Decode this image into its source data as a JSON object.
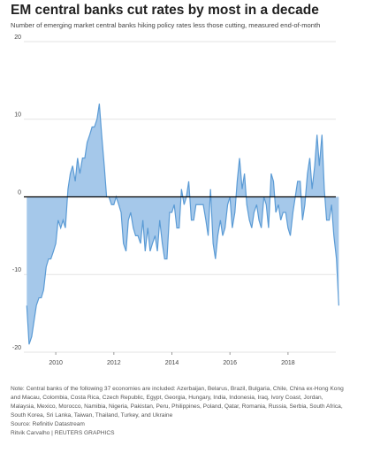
{
  "chart_data": {
    "type": "area",
    "title": "EM central banks cut rates by most in a decade",
    "subtitle": "Number of emerging market central banks hiking policy rates less those cutting, measured end-of-month",
    "note": "Note: Central banks of the following 37 economies are included: Azerbaijan, Belarus, Brazil, Bulgaria, Chile, China ex-Hong Kong and Macau, Colombia, Costa Rica, Czech Republic, Egypt, Georgia, Hungary, India, Indonesia, Iraq, Ivory Coast, Jordan, Malaysia, Mexico, Morocco, Namibia, Nigeria, Pakistan, Peru, Philippines, Poland, Qatar, Romania, Russia, Serbia, South Africa, South Korea, Sri Lanka, Taiwan, Thailand, Turkey, and Ukraine",
    "source": "Source: Refinitiv Datastream",
    "credit": "Ritvik Carvalho   | REUTERS GRAPHICS",
    "x": [
      2009,
      2009.08,
      2009.17,
      2009.25,
      2009.33,
      2009.42,
      2009.5,
      2009.58,
      2009.67,
      2009.75,
      2009.83,
      2009.92,
      2010,
      2010.08,
      2010.17,
      2010.25,
      2010.33,
      2010.42,
      2010.5,
      2010.58,
      2010.67,
      2010.75,
      2010.83,
      2010.92,
      2011,
      2011.08,
      2011.17,
      2011.25,
      2011.33,
      2011.42,
      2011.5,
      2011.58,
      2011.67,
      2011.75,
      2011.83,
      2011.92,
      2012,
      2012.08,
      2012.17,
      2012.25,
      2012.33,
      2012.42,
      2012.5,
      2012.58,
      2012.67,
      2012.75,
      2012.83,
      2012.92,
      2013,
      2013.08,
      2013.17,
      2013.25,
      2013.33,
      2013.42,
      2013.5,
      2013.58,
      2013.67,
      2013.75,
      2013.83,
      2013.92,
      2014,
      2014.08,
      2014.17,
      2014.25,
      2014.33,
      2014.42,
      2014.5,
      2014.58,
      2014.67,
      2014.75,
      2014.83,
      2014.92,
      2015,
      2015.08,
      2015.17,
      2015.25,
      2015.33,
      2015.42,
      2015.5,
      2015.58,
      2015.67,
      2015.75,
      2015.83,
      2015.92,
      2016,
      2016.08,
      2016.17,
      2016.25,
      2016.33,
      2016.42,
      2016.5,
      2016.58,
      2016.67,
      2016.75,
      2016.83,
      2016.92,
      2017,
      2017.08,
      2017.17,
      2017.25,
      2017.33,
      2017.42,
      2017.5,
      2017.58,
      2017.67,
      2017.75,
      2017.83,
      2017.92,
      2018,
      2018.08,
      2018.17,
      2018.25,
      2018.33,
      2018.42,
      2018.5,
      2018.58,
      2018.67,
      2018.75,
      2018.83,
      2018.92,
      2019,
      2019.08,
      2019.17,
      2019.25,
      2019.33,
      2019.42,
      2019.5,
      2019.58,
      2019.67,
      2019.75
    ],
    "values": [
      -14,
      -19,
      -18,
      -16,
      -14,
      -13,
      -13,
      -12,
      -9,
      -8,
      -8,
      -7,
      -6,
      -3,
      -4,
      -3,
      -4,
      1,
      3,
      4,
      2,
      5,
      3,
      5,
      5,
      7,
      8,
      9,
      9,
      10,
      12,
      8,
      4,
      0,
      0,
      -1,
      -1,
      0,
      -1,
      -2,
      -6,
      -7,
      -3,
      -2,
      -4,
      -5,
      -5,
      -6,
      -3,
      -7,
      -4,
      -7,
      -6,
      -5,
      -7,
      -3,
      -6,
      -8,
      -8,
      -2,
      -2,
      -1,
      -4,
      -4,
      1,
      -1,
      0,
      2,
      -3,
      -3,
      -1,
      -1,
      -1,
      -1,
      -3,
      -5,
      1,
      -6,
      -8,
      -5,
      -3,
      -5,
      -4,
      -1,
      0,
      -4,
      -2,
      2,
      5,
      1,
      3,
      -1,
      -3,
      -4,
      -2,
      -1,
      -3,
      -4,
      0,
      -1,
      -4,
      3,
      2,
      -2,
      -1,
      -3,
      -2,
      -2,
      -4,
      -5,
      -2,
      0,
      2,
      2,
      -3,
      -1,
      3,
      5,
      1,
      4,
      8,
      4,
      8,
      1,
      -3,
      -3,
      -1,
      -5,
      -8,
      -14
    ],
    "color": "#5b9bd5",
    "fill": "#a5c8ea",
    "xlim": [
      2008.9,
      2019.8
    ],
    "xticks": [
      2010,
      2012,
      2014,
      2016,
      2018
    ],
    "ylim": [
      -20,
      20
    ],
    "yticks": [
      -20,
      -10,
      0,
      10,
      20
    ],
    "grid": true
  }
}
